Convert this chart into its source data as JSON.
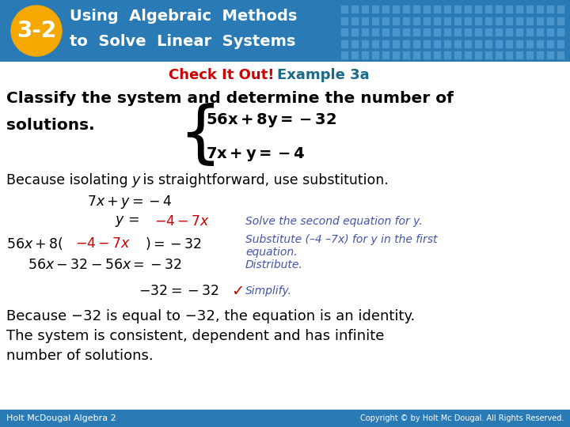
{
  "header_bg": "#2a7ab5",
  "header_text_color": "#ffffff",
  "badge_bg": "#f5a800",
  "badge_text": "3-2",
  "footer_bg": "#2a7ab5",
  "footer_left": "Holt McDougal Algebra 2",
  "footer_right": "Copyright © by Holt Mc Dougal. All Rights Reserved.",
  "footer_text_color": "#ffffff",
  "body_bg": "#ffffff",
  "black": "#000000",
  "red": "#cc0000",
  "blue": "#4455aa"
}
